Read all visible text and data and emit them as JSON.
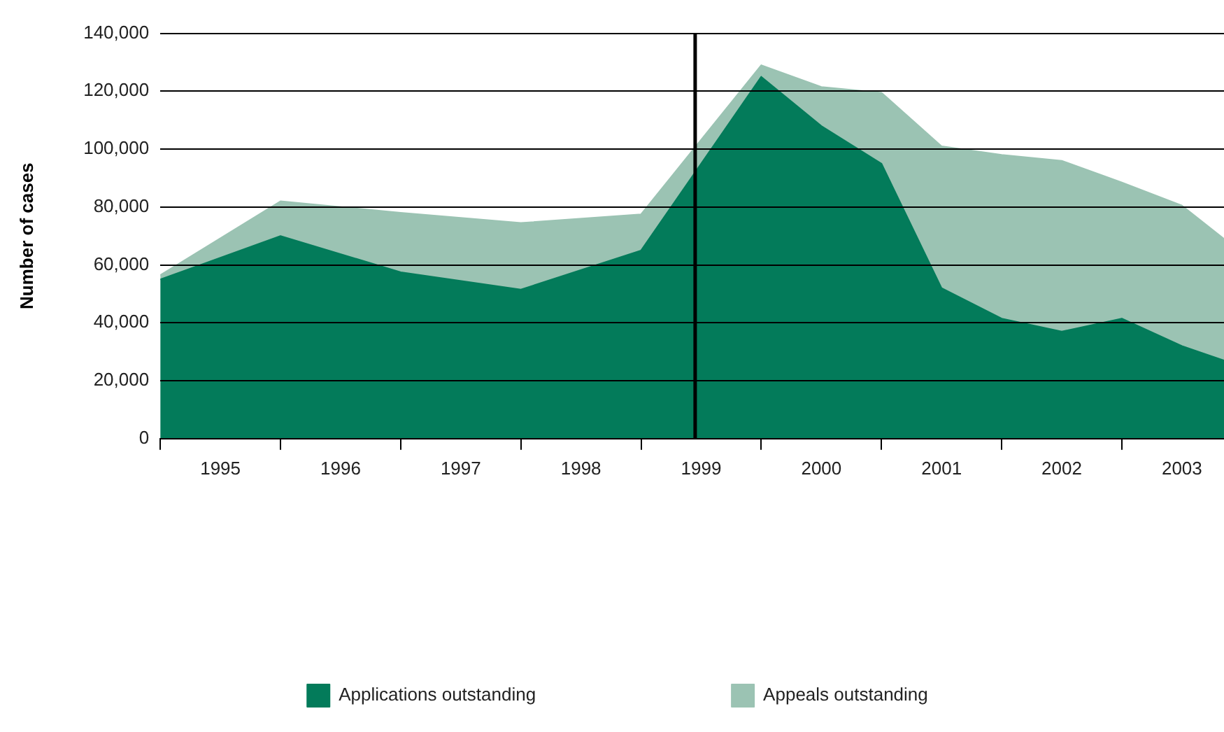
{
  "chart_data": {
    "type": "area",
    "stacked": true,
    "ylabel": "Number of cases",
    "x": [
      1995,
      1996,
      1997,
      1998,
      1999,
      2000,
      2000.5,
      2001,
      2001.5,
      2002,
      2002.5,
      2003,
      2003.5,
      2003.85
    ],
    "series": [
      {
        "name": "Applications outstanding",
        "color": "#037b5a",
        "values": [
          55000,
          70000,
          57500,
          51500,
          65000,
          125000,
          108000,
          95000,
          52000,
          41500,
          37000,
          41500,
          32000,
          27000
        ]
      },
      {
        "name": "Appeals outstanding",
        "color": "#9bc3b3",
        "values": [
          1500,
          12000,
          20500,
          23000,
          12500,
          4000,
          13500,
          24500,
          49000,
          56500,
          59000,
          47000,
          48500,
          42000
        ]
      }
    ],
    "xlim": [
      1995,
      2003.85
    ],
    "xticks": [
      {
        "value": 1995,
        "label": null
      },
      {
        "value": 1995.5,
        "label": "1995"
      },
      {
        "value": 1996,
        "label": null
      },
      {
        "value": 1996.5,
        "label": "1996"
      },
      {
        "value": 1997,
        "label": null
      },
      {
        "value": 1997.5,
        "label": "1997"
      },
      {
        "value": 1998,
        "label": null
      },
      {
        "value": 1998.5,
        "label": "1998"
      },
      {
        "value": 1999,
        "label": null
      },
      {
        "value": 1999.5,
        "label": "1999"
      },
      {
        "value": 2000,
        "label": null
      },
      {
        "value": 2000.5,
        "label": "2000"
      },
      {
        "value": 2001,
        "label": null
      },
      {
        "value": 2001.5,
        "label": "2001"
      },
      {
        "value": 2002,
        "label": null
      },
      {
        "value": 2002.5,
        "label": "2002"
      },
      {
        "value": 2003,
        "label": null
      },
      {
        "value": 2003.5,
        "label": "2003"
      }
    ],
    "ylim": [
      0,
      140000
    ],
    "yticks": [
      {
        "value": 0,
        "label": "0"
      },
      {
        "value": 20000,
        "label": "20,000"
      },
      {
        "value": 40000,
        "label": "40,000"
      },
      {
        "value": 60000,
        "label": "60,000"
      },
      {
        "value": 80000,
        "label": "80,000"
      },
      {
        "value": 100000,
        "label": "100,000"
      },
      {
        "value": 120000,
        "label": "120,000"
      },
      {
        "value": 140000,
        "label": "140,000"
      }
    ],
    "ref_lines": [
      {
        "axis": "x",
        "value": 1999.45,
        "color": "#000000"
      }
    ],
    "grid": "y",
    "legend": "bottom"
  }
}
